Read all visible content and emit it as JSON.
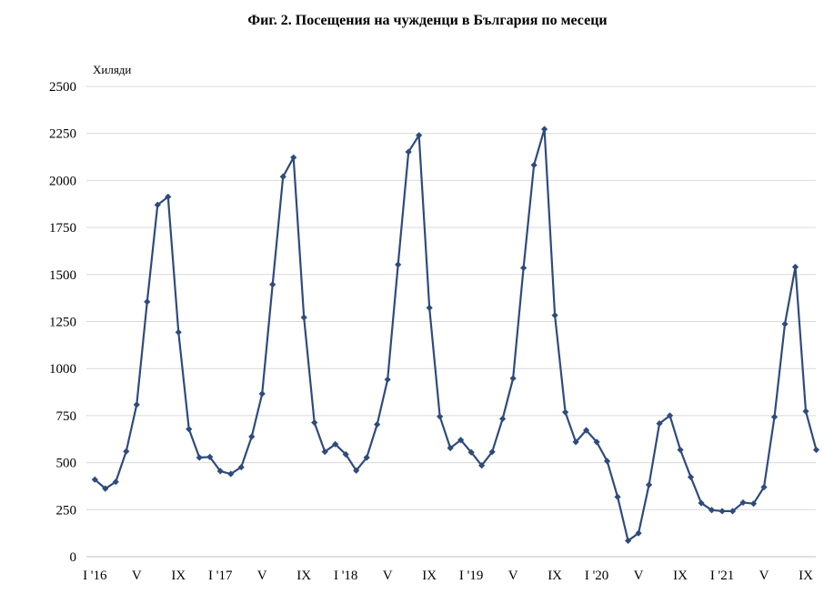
{
  "chart_data": {
    "type": "line",
    "title": "Фиг. 2. Посещения на чужденци в България по месеци",
    "ylabel": "Хиляди",
    "xlabel": "",
    "ylim": [
      0,
      2500
    ],
    "yticks": [
      0,
      250,
      500,
      750,
      1000,
      1250,
      1500,
      1750,
      2000,
      2250,
      2500
    ],
    "grid": true,
    "legend": "none",
    "x_tick_labels": [
      {
        "index": 0,
        "label": "I '16"
      },
      {
        "index": 4,
        "label": "V"
      },
      {
        "index": 8,
        "label": "IX"
      },
      {
        "index": 12,
        "label": "I '17"
      },
      {
        "index": 16,
        "label": "V"
      },
      {
        "index": 20,
        "label": "IX"
      },
      {
        "index": 24,
        "label": "I '18"
      },
      {
        "index": 28,
        "label": "V"
      },
      {
        "index": 32,
        "label": "IX"
      },
      {
        "index": 36,
        "label": "I '19"
      },
      {
        "index": 40,
        "label": "V"
      },
      {
        "index": 44,
        "label": "IX"
      },
      {
        "index": 48,
        "label": "I '20"
      },
      {
        "index": 52,
        "label": "V"
      },
      {
        "index": 56,
        "label": "IX"
      },
      {
        "index": 60,
        "label": "I '21"
      },
      {
        "index": 64,
        "label": "V"
      },
      {
        "index": 68,
        "label": "IX"
      }
    ],
    "series": [
      {
        "color": "#2f4b7c",
        "values": [
          410,
          362,
          398,
          560,
          808,
          1355,
          1870,
          1913,
          1193,
          678,
          527,
          530,
          455,
          440,
          476,
          638,
          866,
          1447,
          2020,
          2122,
          1272,
          713,
          558,
          598,
          544,
          458,
          527,
          703,
          942,
          1553,
          2152,
          2240,
          1323,
          745,
          578,
          620,
          555,
          485,
          557,
          733,
          948,
          1535,
          2082,
          2273,
          1283,
          768,
          610,
          672,
          610,
          508,
          318,
          85,
          125,
          382,
          708,
          750,
          568,
          423,
          285,
          248,
          242,
          242,
          288,
          282,
          370,
          743,
          1237,
          1540,
          773,
          568
        ]
      }
    ]
  }
}
